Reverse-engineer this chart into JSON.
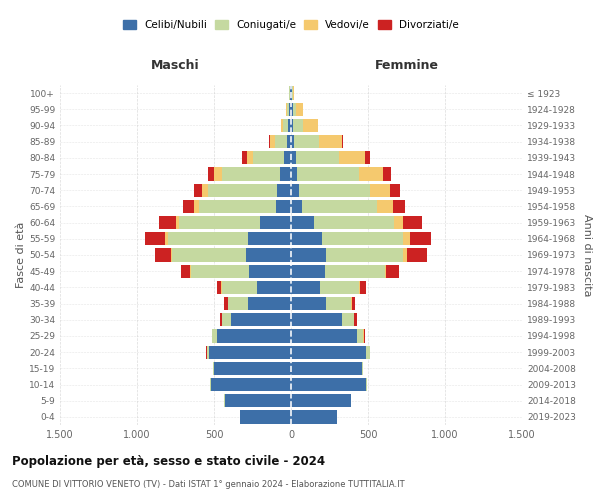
{
  "age_groups": [
    "0-4",
    "5-9",
    "10-14",
    "15-19",
    "20-24",
    "25-29",
    "30-34",
    "35-39",
    "40-44",
    "45-49",
    "50-54",
    "55-59",
    "60-64",
    "65-69",
    "70-74",
    "75-79",
    "80-84",
    "85-89",
    "90-94",
    "95-99",
    "100+"
  ],
  "birth_years": [
    "2019-2023",
    "2014-2018",
    "2009-2013",
    "2004-2008",
    "1999-2003",
    "1994-1998",
    "1989-1993",
    "1984-1988",
    "1979-1983",
    "1974-1978",
    "1969-1973",
    "1964-1968",
    "1959-1963",
    "1954-1958",
    "1949-1953",
    "1944-1948",
    "1939-1943",
    "1934-1938",
    "1929-1933",
    "1924-1928",
    "≤ 1923"
  ],
  "maschi": {
    "celibe": [
      330,
      430,
      520,
      500,
      530,
      480,
      390,
      280,
      220,
      270,
      290,
      280,
      200,
      100,
      90,
      70,
      45,
      25,
      20,
      15,
      5
    ],
    "coniugato": [
      1,
      2,
      3,
      5,
      15,
      30,
      60,
      130,
      230,
      380,
      480,
      520,
      530,
      500,
      450,
      380,
      200,
      80,
      30,
      10,
      5
    ],
    "vedovo": [
      0,
      0,
      0,
      0,
      1,
      1,
      1,
      2,
      3,
      5,
      10,
      15,
      20,
      30,
      40,
      50,
      40,
      30,
      15,
      5,
      1
    ],
    "divorziato": [
      0,
      0,
      0,
      0,
      3,
      5,
      10,
      20,
      30,
      60,
      100,
      130,
      110,
      70,
      50,
      40,
      30,
      5,
      2,
      0,
      0
    ]
  },
  "femmine": {
    "nubile": [
      300,
      390,
      490,
      460,
      490,
      430,
      330,
      230,
      190,
      220,
      230,
      200,
      150,
      70,
      55,
      40,
      30,
      20,
      15,
      10,
      5
    ],
    "coniugata": [
      1,
      2,
      4,
      8,
      20,
      40,
      80,
      160,
      250,
      390,
      500,
      530,
      520,
      490,
      460,
      400,
      280,
      160,
      60,
      20,
      5
    ],
    "vedova": [
      0,
      0,
      0,
      0,
      1,
      1,
      2,
      3,
      5,
      10,
      25,
      40,
      60,
      100,
      130,
      160,
      170,
      150,
      100,
      50,
      10
    ],
    "divorziata": [
      0,
      0,
      0,
      1,
      4,
      8,
      15,
      25,
      40,
      80,
      130,
      140,
      120,
      80,
      60,
      50,
      30,
      8,
      3,
      1,
      0
    ]
  },
  "colors": {
    "celibe": "#3d6fa8",
    "coniugato": "#c5d9a0",
    "vedovo": "#f5c96e",
    "divorziato": "#cc2222"
  },
  "title": "Popolazione per età, sesso e stato civile - 2024",
  "subtitle": "COMUNE DI VITTORIO VENETO (TV) - Dati ISTAT 1° gennaio 2024 - Elaborazione TUTTITALIA.IT",
  "xlabel_maschi": "Maschi",
  "xlabel_femmine": "Femmine",
  "ylabel_left": "Fasce di età",
  "ylabel_right": "Anni di nascita",
  "xlim": 1500,
  "xticks": [
    -1500,
    -1000,
    -500,
    0,
    500,
    1000,
    1500
  ],
  "xtick_labels": [
    "1.500",
    "1.000",
    "500",
    "0",
    "500",
    "1.000",
    "1.500"
  ],
  "background_color": "#ffffff",
  "grid_color": "#cccccc"
}
